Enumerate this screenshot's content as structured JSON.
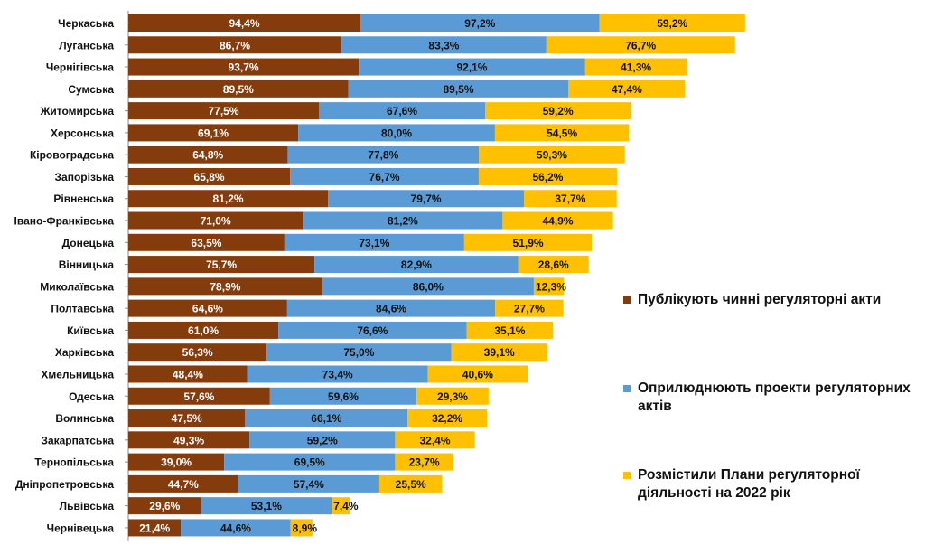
{
  "chart_data": {
    "type": "bar",
    "orientation": "horizontal",
    "stacked": true,
    "categories": [
      "Черкаська",
      "Луганська",
      "Чернігівська",
      "Сумська",
      "Житомирська",
      "Херсонська",
      "Кіровоградська",
      "Запорізька",
      "Рівненська",
      "Івано-Франківська",
      "Донецька",
      "Вінницька",
      "Миколаївська",
      "Полтавська",
      "Київська",
      "Харківська",
      "Хмельницька",
      "Одеська",
      "Волинська",
      "Закарпатська",
      "Тернопільська",
      "Дніпропетровська",
      "Львівська",
      "Чернівецька"
    ],
    "series": [
      {
        "name": "Публікують чинні регуляторні акти",
        "color": "#843C0C",
        "values": [
          94.4,
          86.7,
          93.7,
          89.5,
          77.5,
          69.1,
          64.8,
          65.8,
          81.2,
          71.0,
          63.5,
          75.7,
          78.9,
          64.6,
          61.0,
          56.3,
          48.4,
          57.6,
          47.5,
          49.3,
          39.0,
          44.7,
          29.6,
          21.4
        ],
        "labels": [
          "94,4%",
          "86,7%",
          "93,7%",
          "89,5%",
          "77,5%",
          "69,1%",
          "64,8%",
          "65,8%",
          "81,2%",
          "71,0%",
          "63,5%",
          "75,7%",
          "78,9%",
          "64,6%",
          "61,0%",
          "56,3%",
          "48,4%",
          "57,6%",
          "47,5%",
          "49,3%",
          "39,0%",
          "44,7%",
          "29,6%",
          "21,4%"
        ]
      },
      {
        "name": "Оприлюднюють проекти регуляторних актів",
        "color": "#5B9BD5",
        "values": [
          97.2,
          83.3,
          92.1,
          89.5,
          67.6,
          80.0,
          77.8,
          76.7,
          79.7,
          81.2,
          73.1,
          82.9,
          86.0,
          84.6,
          76.6,
          75.0,
          73.4,
          59.6,
          66.1,
          59.2,
          69.5,
          57.4,
          53.1,
          44.6
        ],
        "labels": [
          "97,2%",
          "83,3%",
          "92,1%",
          "89,5%",
          "67,6%",
          "80,0%",
          "77,8%",
          "76,7%",
          "79,7%",
          "81,2%",
          "73,1%",
          "82,9%",
          "86,0%",
          "84,6%",
          "76,6%",
          "75,0%",
          "73,4%",
          "59,6%",
          "66,1%",
          "59,2%",
          "69,5%",
          "57,4%",
          "53,1%",
          "44,6%"
        ]
      },
      {
        "name": "Розмістили Плани регуляторної діяльності на 2022 рік",
        "color": "#FFC000",
        "values": [
          59.2,
          76.7,
          41.3,
          47.4,
          59.2,
          54.5,
          59.3,
          56.2,
          37.7,
          44.9,
          51.9,
          28.6,
          12.3,
          27.7,
          35.1,
          39.1,
          40.6,
          29.3,
          32.2,
          32.4,
          23.7,
          25.5,
          7.4,
          8.9
        ],
        "labels": [
          "59,2%",
          "76,7%",
          "41,3%",
          "47,4%",
          "59,2%",
          "54,5%",
          "59,3%",
          "56,2%",
          "37,7%",
          "44,9%",
          "51,9%",
          "28,6%",
          "12,3%",
          "27,7%",
          "35,1%",
          "39,1%",
          "40,6%",
          "29,3%",
          "32,2%",
          "32,4%",
          "23,7%",
          "25,5%",
          "7,4%",
          "8,9%"
        ]
      }
    ],
    "legend_position": "right",
    "grid": false,
    "title": "",
    "xlabel": "",
    "ylabel": ""
  }
}
